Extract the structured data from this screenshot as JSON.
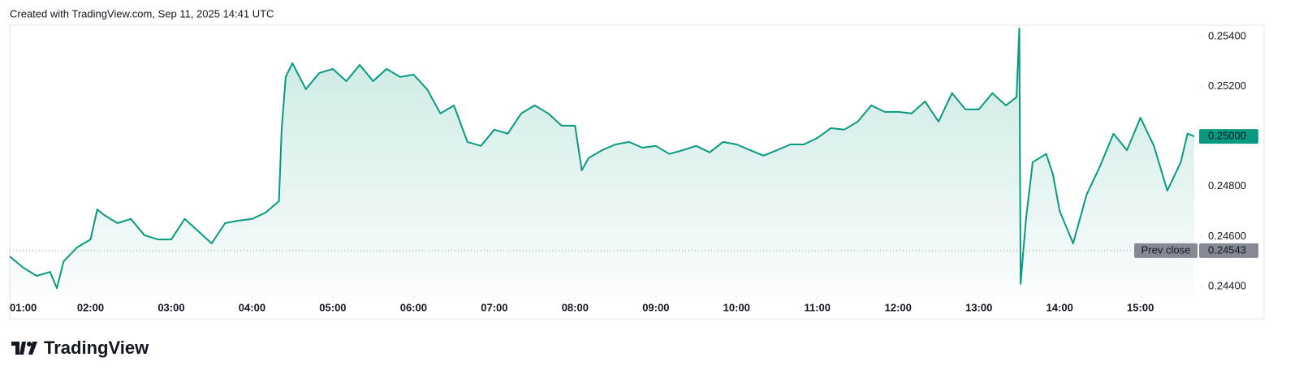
{
  "header": {
    "text": "Created with TradingView.com, Sep 11, 2025 14:41 UTC"
  },
  "footer": {
    "brand": "TradingView"
  },
  "chart_data": {
    "type": "area",
    "color": "#089981",
    "x": [
      "01:00",
      "01:10",
      "01:20",
      "01:30",
      "01:35",
      "01:40",
      "01:50",
      "02:00",
      "02:05",
      "02:10",
      "02:20",
      "02:30",
      "02:40",
      "02:50",
      "03:00",
      "03:10",
      "03:20",
      "03:30",
      "03:40",
      "03:50",
      "04:00",
      "04:10",
      "04:20",
      "04:22",
      "04:25",
      "04:30",
      "04:40",
      "04:50",
      "05:00",
      "05:10",
      "05:20",
      "05:30",
      "05:40",
      "05:50",
      "06:00",
      "06:10",
      "06:20",
      "06:30",
      "06:40",
      "06:50",
      "07:00",
      "07:10",
      "07:20",
      "07:30",
      "07:40",
      "07:50",
      "08:00",
      "08:05",
      "08:10",
      "08:20",
      "08:30",
      "08:40",
      "08:50",
      "09:00",
      "09:10",
      "09:20",
      "09:30",
      "09:40",
      "09:50",
      "10:00",
      "10:10",
      "10:20",
      "10:30",
      "10:40",
      "10:50",
      "11:00",
      "11:10",
      "11:20",
      "11:30",
      "11:40",
      "11:50",
      "12:00",
      "12:10",
      "12:20",
      "12:30",
      "12:40",
      "12:50",
      "13:00",
      "13:10",
      "13:20",
      "13:28",
      "13:30",
      "13:31",
      "13:33",
      "13:35",
      "13:40",
      "13:50",
      "13:55",
      "14:00",
      "14:10",
      "14:20",
      "14:30",
      "14:40",
      "14:50",
      "15:00",
      "15:10",
      "15:20",
      "15:30",
      "15:35",
      "15:40"
    ],
    "values": [
      0.2452,
      0.24475,
      0.24442,
      0.24458,
      0.24393,
      0.245,
      0.24556,
      0.24588,
      0.24708,
      0.24686,
      0.24653,
      0.2467,
      0.24605,
      0.24588,
      0.24588,
      0.2467,
      0.24621,
      0.24572,
      0.24653,
      0.24663,
      0.2467,
      0.24695,
      0.24741,
      0.25027,
      0.25238,
      0.25293,
      0.25189,
      0.25254,
      0.2527,
      0.25221,
      0.25286,
      0.25221,
      0.2527,
      0.25238,
      0.25247,
      0.25189,
      0.25092,
      0.25124,
      0.24978,
      0.24962,
      0.25027,
      0.25011,
      0.25092,
      0.25124,
      0.25092,
      0.25043,
      0.25043,
      0.24864,
      0.24913,
      0.24945,
      0.24968,
      0.24978,
      0.24955,
      0.24962,
      0.2493,
      0.24945,
      0.24962,
      0.24936,
      0.24978,
      0.24968,
      0.24945,
      0.24923,
      0.24945,
      0.24968,
      0.24968,
      0.24994,
      0.25033,
      0.25027,
      0.25059,
      0.25124,
      0.25098,
      0.25098,
      0.25092,
      0.2514,
      0.25059,
      0.25173,
      0.25108,
      0.25108,
      0.25173,
      0.25124,
      0.25157,
      0.25432,
      0.2441,
      0.2454,
      0.2467,
      0.24897,
      0.2493,
      0.24848,
      0.24702,
      0.24572,
      0.24767,
      0.24881,
      0.25011,
      0.24945,
      0.25075,
      0.24962,
      0.24783,
      0.24897,
      0.25011,
      0.25
    ],
    "xlim": [
      "01:00",
      "15:40"
    ],
    "xticks": [
      "01:00",
      "02:00",
      "03:00",
      "04:00",
      "05:00",
      "06:00",
      "07:00",
      "08:00",
      "09:00",
      "10:00",
      "11:00",
      "12:00",
      "13:00",
      "14:00",
      "15:00"
    ],
    "ylim": [
      0.24361,
      0.25445
    ],
    "yticks": [
      {
        "value": 0.244,
        "label": "0.24400"
      },
      {
        "value": 0.246,
        "label": "0.24600"
      },
      {
        "value": 0.248,
        "label": "0.24800"
      },
      {
        "value": 0.25,
        "label": "0.25000"
      },
      {
        "value": 0.252,
        "label": "0.25200"
      },
      {
        "value": 0.254,
        "label": "0.25400"
      }
    ],
    "last_price": {
      "value": 0.25,
      "label": "0.25000"
    },
    "prev_close": {
      "name": "Prev close",
      "value": 0.24543,
      "label": "0.24543"
    }
  }
}
